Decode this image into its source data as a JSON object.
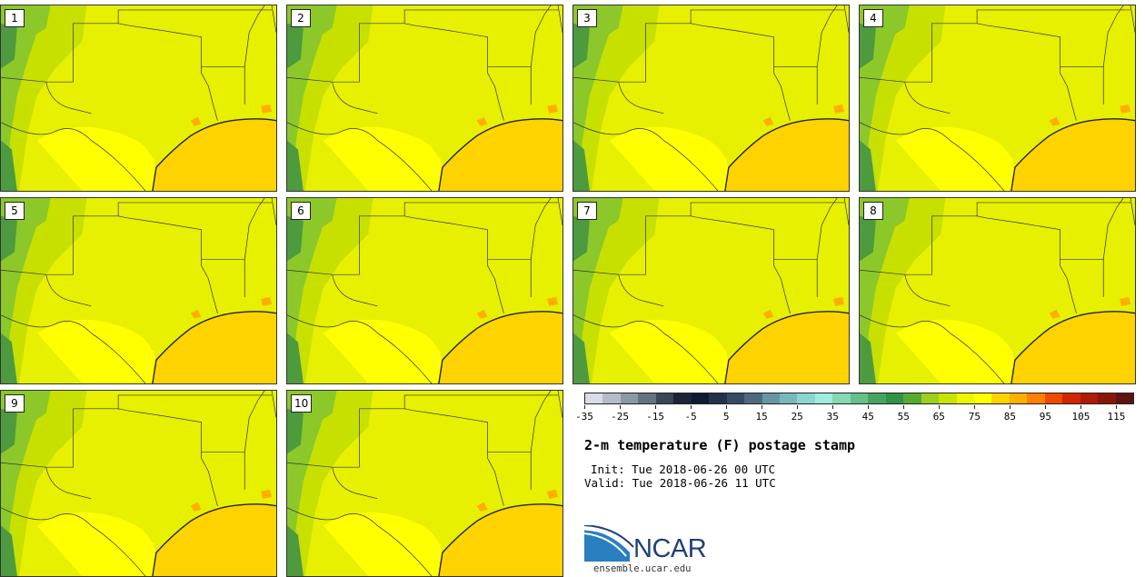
{
  "stamps": [
    {
      "label": "1"
    },
    {
      "label": "2"
    },
    {
      "label": "3"
    },
    {
      "label": "4"
    },
    {
      "label": "5"
    },
    {
      "label": "6"
    },
    {
      "label": "7"
    },
    {
      "label": "8"
    },
    {
      "label": "9"
    },
    {
      "label": "10"
    }
  ],
  "colorbar": {
    "colors": [
      "#d9dde5",
      "#b5bcc8",
      "#8c97a7",
      "#66727f",
      "#3a4658",
      "#1b2438",
      "#0c1a33",
      "#213148",
      "#354b63",
      "#4d6a7e",
      "#6796a3",
      "#79b8ba",
      "#8dd6cf",
      "#a2ecde",
      "#84d8b3",
      "#64c08b",
      "#44a560",
      "#2f9244",
      "#55aa33",
      "#9ccf1d",
      "#c9e300",
      "#ecf600",
      "#ffff00",
      "#ffd300",
      "#ffae00",
      "#ff8000",
      "#ee4a00",
      "#d22600",
      "#b01a08",
      "#8a1608",
      "#601212"
    ],
    "tick_labels": [
      "-35",
      "-25",
      "-15",
      "-5",
      "5",
      "15",
      "25",
      "35",
      "45",
      "55",
      "65",
      "75",
      "85",
      "95",
      "105",
      "115"
    ]
  },
  "title": "2-m temperature (F) postage stamp",
  "init_line": "Init: Tue 2018-06-26 00 UTC",
  "valid_line": "Valid: Tue 2018-06-26 11 UTC",
  "logo": {
    "text": "NCAR",
    "url": "ensemble.ucar.edu"
  },
  "map_colors": {
    "land": "#e6f000",
    "warm_land": "#ffff00",
    "highlands": "#c8e000",
    "mountains": "#8cc82a",
    "peaks": "#4e9a3e",
    "gulf": "#ffd300",
    "lake": "#ffae00",
    "boundary": "#333333"
  }
}
